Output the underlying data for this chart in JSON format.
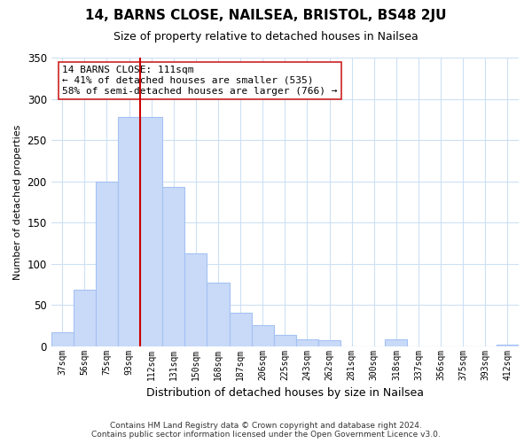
{
  "title": "14, BARNS CLOSE, NAILSEA, BRISTOL, BS48 2JU",
  "subtitle": "Size of property relative to detached houses in Nailsea",
  "xlabel": "Distribution of detached houses by size in Nailsea",
  "ylabel": "Number of detached properties",
  "categories": [
    "37sqm",
    "56sqm",
    "75sqm",
    "93sqm",
    "112sqm",
    "131sqm",
    "150sqm",
    "168sqm",
    "187sqm",
    "206sqm",
    "225sqm",
    "243sqm",
    "262sqm",
    "281sqm",
    "300sqm",
    "318sqm",
    "337sqm",
    "356sqm",
    "375sqm",
    "393sqm",
    "412sqm"
  ],
  "values": [
    17,
    68,
    200,
    278,
    278,
    193,
    113,
    77,
    40,
    25,
    14,
    8,
    7,
    0,
    0,
    8,
    0,
    0,
    0,
    0,
    2
  ],
  "bar_color": "#c9daf8",
  "bar_edgecolor": "#a4c2f4",
  "marker_index": 4,
  "marker_label": "14 BARNS CLOSE: 111sqm",
  "annotation_line1": "← 41% of detached houses are smaller (535)",
  "annotation_line2": "58% of semi-detached houses are larger (766) →",
  "marker_color": "#cc0000",
  "ylim": [
    0,
    350
  ],
  "yticks": [
    0,
    50,
    100,
    150,
    200,
    250,
    300,
    350
  ],
  "footer_line1": "Contains HM Land Registry data © Crown copyright and database right 2024.",
  "footer_line2": "Contains public sector information licensed under the Open Government Licence v3.0.",
  "background_color": "#ffffff",
  "grid_color": "#cde0f5"
}
